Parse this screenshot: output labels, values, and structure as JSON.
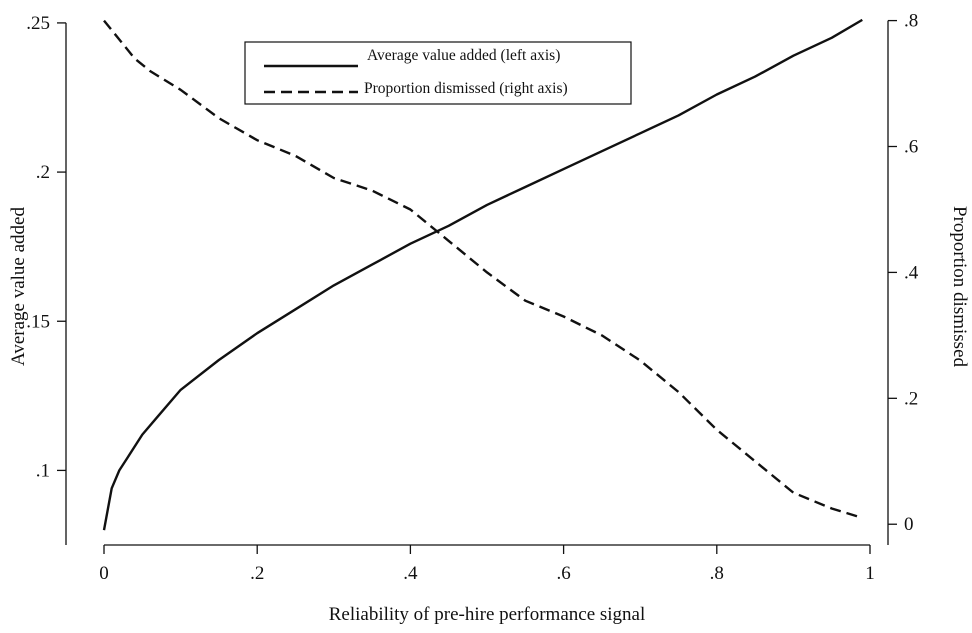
{
  "chart_data": {
    "type": "line",
    "xlabel": "Reliability of pre-hire performance signal",
    "ylabel_left": "Average value added",
    "ylabel_right": "Proportion dismissed",
    "xlim": [
      0,
      1
    ],
    "ylim_left": [
      0.075,
      0.255
    ],
    "ylim_right": [
      -0.033,
      0.82
    ],
    "x_ticks": [
      {
        "value": 0,
        "label": "0"
      },
      {
        "value": 0.2,
        "label": ".2"
      },
      {
        "value": 0.4,
        "label": ".4"
      },
      {
        "value": 0.6,
        "label": ".6"
      },
      {
        "value": 0.8,
        "label": ".8"
      },
      {
        "value": 1,
        "label": "1"
      }
    ],
    "y_left_ticks": [
      {
        "value": 0.1,
        "label": ".1"
      },
      {
        "value": 0.15,
        "label": ".15"
      },
      {
        "value": 0.2,
        "label": ".2"
      },
      {
        "value": 0.25,
        "label": ".25"
      }
    ],
    "y_right_ticks": [
      {
        "value": 0,
        "label": "0"
      },
      {
        "value": 0.2,
        "label": ".2"
      },
      {
        "value": 0.4,
        "label": ".4"
      },
      {
        "value": 0.6,
        "label": ".6"
      },
      {
        "value": 0.8,
        "label": ".8"
      }
    ],
    "legend_position": "top-center",
    "grid": false,
    "series": [
      {
        "name": "Average value added (left axis)",
        "axis": "left",
        "style": "solid",
        "color": "#111111",
        "x": [
          0,
          0.01,
          0.02,
          0.03,
          0.05,
          0.07,
          0.1,
          0.15,
          0.2,
          0.25,
          0.3,
          0.35,
          0.4,
          0.45,
          0.5,
          0.55,
          0.6,
          0.65,
          0.7,
          0.75,
          0.8,
          0.85,
          0.9,
          0.95,
          0.99
        ],
        "y": [
          0.08,
          0.094,
          0.1,
          0.104,
          0.112,
          0.118,
          0.127,
          0.137,
          0.146,
          0.154,
          0.162,
          0.169,
          0.176,
          0.182,
          0.189,
          0.195,
          0.201,
          0.207,
          0.213,
          0.219,
          0.226,
          0.232,
          0.239,
          0.245,
          0.251
        ]
      },
      {
        "name": "Proportion dismissed (right axis)",
        "axis": "right",
        "style": "dashed",
        "color": "#111111",
        "x": [
          0,
          0.02,
          0.04,
          0.06,
          0.1,
          0.15,
          0.2,
          0.25,
          0.3,
          0.35,
          0.4,
          0.45,
          0.5,
          0.55,
          0.6,
          0.65,
          0.7,
          0.75,
          0.8,
          0.85,
          0.9,
          0.95,
          0.99
        ],
        "y": [
          0.8,
          0.77,
          0.74,
          0.72,
          0.69,
          0.645,
          0.61,
          0.585,
          0.55,
          0.53,
          0.5,
          0.45,
          0.4,
          0.355,
          0.33,
          0.3,
          0.26,
          0.21,
          0.15,
          0.1,
          0.05,
          0.025,
          0.01
        ]
      }
    ]
  }
}
